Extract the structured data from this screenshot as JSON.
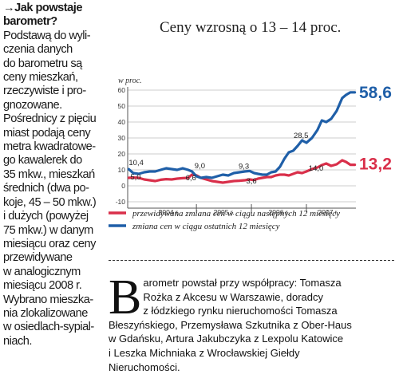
{
  "sidebar": {
    "arrow": "→",
    "heading_lines": [
      "Jak powstaje",
      "barometr?"
    ],
    "body_lines": [
      "Podstawą do wyli-",
      "czenia danych",
      "do barometru są",
      "ceny mieszkań,",
      "rzeczywiste i pro-",
      "gnozowane.",
      "Pośrednicy z pięciu",
      "miast podają ceny",
      "metra kwadratowe-",
      "go kawalerek do",
      "35 mkw., mieszkań",
      "średnich (dwa po-",
      "koje, 45 – 50 mkw.)",
      "i dużych (powyżej",
      "75 mkw.) w danym",
      "miesiącu oraz ceny",
      "przewidywane",
      "w analogicznym",
      "miesiącu 2008 r.",
      "Wybrano mieszka-",
      "nia zlokalizowane",
      "w osiedlach-sypial-",
      "niach."
    ]
  },
  "chart_data": {
    "type": "line",
    "title": "Ceny wzrosną o 13 – 14 proc.",
    "ylabel": "w proc.",
    "xlabel": "",
    "ylim": [
      -10,
      60
    ],
    "yticks": [
      -10,
      0,
      10,
      20,
      30,
      40,
      50,
      60
    ],
    "xlim": [
      2003.75,
      2007.9
    ],
    "year_labels": [
      {
        "label": "2004 r.",
        "x": 2004.5
      },
      {
        "label": "2005 r.",
        "x": 2005.5
      },
      {
        "label": "2006 r.",
        "x": 2006.5
      },
      {
        "label": "2007 r.",
        "x": 2007.4
      }
    ],
    "year_separators": [
      2005.0,
      2006.0,
      2007.0
    ],
    "grid": true,
    "legend": "bottom",
    "series": [
      {
        "name": "przewidywana zmiana cen w ciągu następnych 12 miesięcy",
        "color": "#d92f4a",
        "x": [
          2003.77,
          2003.85,
          2003.95,
          2004.05,
          2004.15,
          2004.25,
          2004.35,
          2004.45,
          2004.55,
          2004.65,
          2004.75,
          2004.85,
          2004.92,
          2005.0,
          2005.08,
          2005.18,
          2005.28,
          2005.38,
          2005.48,
          2005.58,
          2005.68,
          2005.78,
          2005.88,
          2005.97,
          2006.05,
          2006.12,
          2006.2,
          2006.28,
          2006.36,
          2006.44,
          2006.52,
          2006.6,
          2006.68,
          2006.76,
          2006.84,
          2006.92,
          2007.0,
          2007.1,
          2007.2,
          2007.28,
          2007.36,
          2007.45,
          2007.55,
          2007.65,
          2007.72,
          2007.8,
          2007.88
        ],
        "y": [
          5.0,
          5.2,
          5.0,
          4.0,
          3.5,
          3.0,
          3.8,
          4.2,
          4.0,
          4.5,
          4.8,
          5.0,
          7.0,
          6.6,
          5.0,
          4.0,
          3.0,
          2.5,
          2.0,
          2.5,
          3.0,
          3.2,
          3.5,
          4.0,
          3.6,
          4.5,
          5.0,
          5.5,
          5.5,
          6.5,
          7.0,
          7.0,
          6.5,
          7.5,
          8.5,
          8.0,
          9.0,
          10.5,
          11.5,
          13.0,
          14.0,
          12.5,
          13.5,
          16.0,
          15.0,
          13.2,
          13.2
        ]
      },
      {
        "name": "zmiana cen w ciągu ostatnich 12 miesięcy",
        "color": "#1f5fa8",
        "x": [
          2003.77,
          2003.85,
          2003.95,
          2004.05,
          2004.15,
          2004.25,
          2004.35,
          2004.45,
          2004.55,
          2004.65,
          2004.75,
          2004.85,
          2004.92,
          2005.0,
          2005.08,
          2005.18,
          2005.28,
          2005.38,
          2005.48,
          2005.58,
          2005.68,
          2005.78,
          2005.88,
          2005.97,
          2006.05,
          2006.12,
          2006.2,
          2006.28,
          2006.36,
          2006.44,
          2006.52,
          2006.6,
          2006.68,
          2006.76,
          2006.84,
          2006.92,
          2007.0,
          2007.1,
          2007.2,
          2007.28,
          2007.36,
          2007.45,
          2007.55,
          2007.65,
          2007.72,
          2007.8,
          2007.88
        ],
        "y": [
          10.4,
          8.0,
          7.5,
          8.5,
          9.0,
          9.0,
          10.0,
          11.0,
          10.5,
          10.0,
          11.0,
          10.0,
          9.0,
          6.0,
          5.0,
          5.5,
          5.0,
          6.0,
          7.0,
          6.5,
          8.0,
          8.5,
          9.0,
          9.3,
          8.0,
          7.5,
          7.0,
          7.0,
          8.5,
          9.0,
          12.0,
          17.0,
          21.0,
          22.0,
          25.0,
          28.5,
          27.0,
          30.0,
          35.0,
          41.0,
          40.0,
          42.0,
          47.0,
          55.0,
          57.0,
          58.6,
          58.6
        ]
      }
    ],
    "annotations": [
      "10,4",
      "5,0",
      "9,0",
      "6,6",
      "9,3",
      "3,6",
      "28,5",
      "14,0"
    ],
    "end_labels": [
      "58,6",
      "13,2"
    ]
  },
  "note": {
    "dropcap": "B",
    "lines": [
      "arometr powstał przy współpracy: Tomasza",
      "Rożka z Akcesu w Warszawie, doradcy",
      "z łódzkiego rynku nieruchomości Tomasza",
      "Błeszyńskiego, Przemysława Szkutnika z Ober-Haus",
      "w Gdańsku, Artura Jakubczyka z Lexpolu Katowice",
      "i Leszka Michniaka z Wrocławskiej Giełdy",
      "Nieruchomości."
    ]
  }
}
